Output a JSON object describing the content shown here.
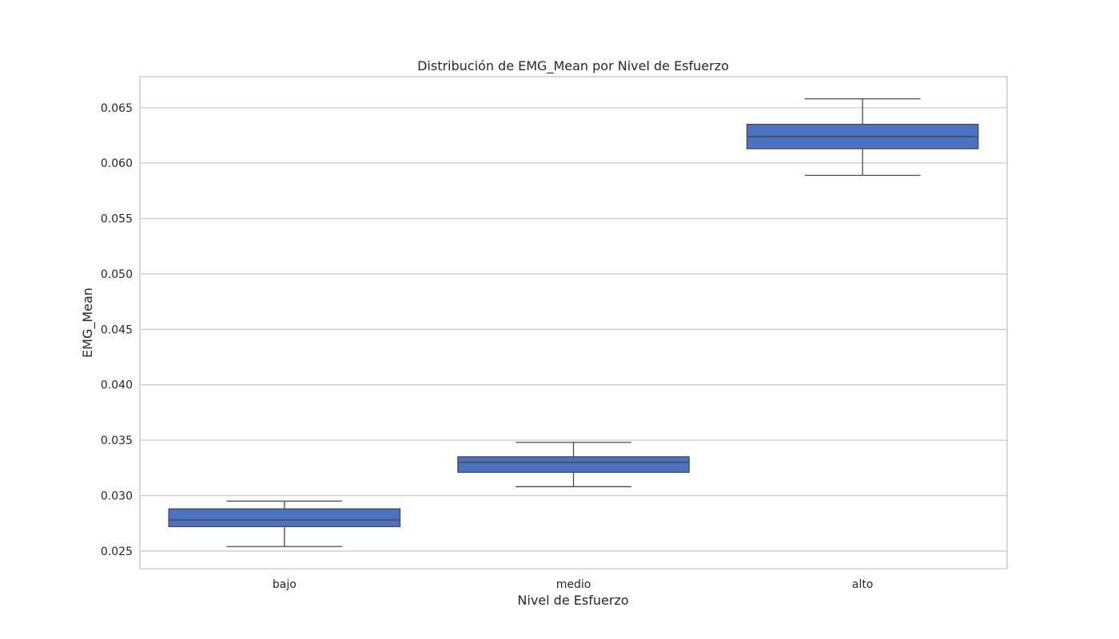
{
  "chart_data": {
    "type": "box",
    "title": "Distribución de EMG_Mean por Nivel de Esfuerzo",
    "xlabel": "Nivel de Esfuerzo",
    "ylabel": "EMG_Mean",
    "categories": [
      "bajo",
      "medio",
      "alto"
    ],
    "boxes": [
      {
        "category": "bajo",
        "whisker_low": 0.0254,
        "q1": 0.0272,
        "median": 0.0278,
        "q3": 0.0288,
        "whisker_high": 0.0295
      },
      {
        "category": "medio",
        "whisker_low": 0.0308,
        "q1": 0.0321,
        "median": 0.033,
        "q3": 0.0335,
        "whisker_high": 0.0348
      },
      {
        "category": "alto",
        "whisker_low": 0.0589,
        "q1": 0.0613,
        "median": 0.0624,
        "q3": 0.0635,
        "whisker_high": 0.0658
      }
    ],
    "yticks": [
      0.025,
      0.03,
      0.035,
      0.04,
      0.045,
      0.05,
      0.055,
      0.06,
      0.065
    ],
    "ytick_labels": [
      "0.025",
      "0.030",
      "0.035",
      "0.040",
      "0.045",
      "0.050",
      "0.055",
      "0.060",
      "0.065"
    ],
    "ylim": [
      0.0234,
      0.0678
    ],
    "grid": true,
    "box_color": "#4c72c4",
    "line_color": "#4a4a4a",
    "grid_color": "#cccccc"
  }
}
